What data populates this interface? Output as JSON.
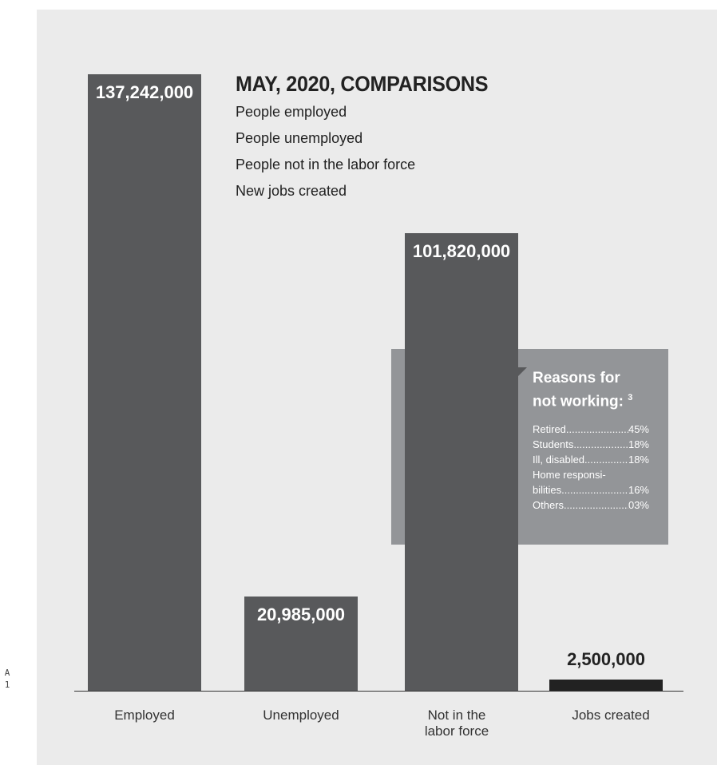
{
  "margin_mark": [
    "A",
    "1"
  ],
  "title": "MAY, 2020, COMPARISONS",
  "subtitle_lines": [
    "People employed",
    "People unemployed",
    "People not in the labor force",
    "New jobs created"
  ],
  "colors": {
    "bar": "#58595b",
    "callout": "#939598",
    "background": "#ebebeb"
  },
  "callout": {
    "title_line1": "Reasons for",
    "title_line2": "not working:",
    "footnote": "3",
    "rows": [
      {
        "name": "Retired",
        "value": "45%"
      },
      {
        "name": "Students",
        "value": "18%"
      },
      {
        "name": "Ill, disabled",
        "value": "18%"
      },
      {
        "name": "Home responsi-",
        "value": ""
      },
      {
        "name": "bilities",
        "value": "16%"
      },
      {
        "name": "Others",
        "value": "03%"
      }
    ]
  },
  "chart_data": {
    "type": "bar",
    "title": "MAY, 2020, COMPARISONS",
    "categories": [
      "Employed",
      "Unemployed",
      "Not in the labor force",
      "Jobs created"
    ],
    "category_lines": [
      [
        "Employed"
      ],
      [
        "Unemployed"
      ],
      [
        "Not in the",
        "labor force"
      ],
      [
        "Jobs created"
      ]
    ],
    "values": [
      137242000,
      20985000,
      101820000,
      2500000
    ],
    "value_labels": [
      "137,242,000",
      "20,985,000",
      "101,820,000",
      "2,500,000"
    ],
    "ylim": [
      0,
      137242000
    ],
    "grid": false,
    "legend": "none"
  }
}
